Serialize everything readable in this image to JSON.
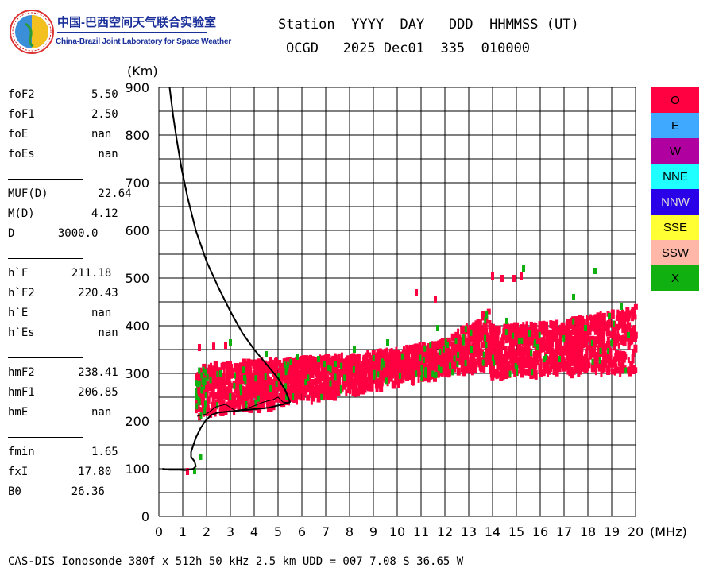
{
  "header": {
    "org_cn": "中国-巴西空间天气联合实验室",
    "org_en": "China-Brazil Joint Laboratory for Space Weather",
    "line1": "Station  YYYY  DAY   DDD  HHMMSS (UT)",
    "line2": "OCGD   2025 Dec01  335  010000"
  },
  "params": [
    {
      "name": "foF2",
      "value": "5.50"
    },
    {
      "name": "foF1",
      "value": "2.50"
    },
    {
      "name": "foE",
      "value": "nan"
    },
    {
      "name": "foEs",
      "value": "nan"
    },
    {
      "name": "MUF(D)",
      "value": "22.64"
    },
    {
      "name": "M(D)",
      "value": "4.12"
    },
    {
      "name": "D",
      "value": "3000.0"
    },
    {
      "name": "h`F",
      "value": "211.18"
    },
    {
      "name": "h`F2",
      "value": "220.43"
    },
    {
      "name": "h`E",
      "value": "nan"
    },
    {
      "name": "h`Es",
      "value": "nan"
    },
    {
      "name": "hmF2",
      "value": "238.41"
    },
    {
      "name": "hmF1",
      "value": "206.85"
    },
    {
      "name": "hmE",
      "value": "nan"
    },
    {
      "name": "fmin",
      "value": "1.65"
    },
    {
      "name": "fxI",
      "value": "17.80"
    },
    {
      "name": "B0",
      "value": "26.36"
    }
  ],
  "legend": [
    {
      "label": "O",
      "color": "#ff0040"
    },
    {
      "label": "E",
      "color": "#3fa9ff"
    },
    {
      "label": "W",
      "color": "#b000a0"
    },
    {
      "label": "NNE",
      "color": "#1fffff"
    },
    {
      "label": "NNW",
      "color": "#2a00e8"
    },
    {
      "label": "SSE",
      "color": "#ffff33"
    },
    {
      "label": "SSW",
      "color": "#ffb8a8"
    },
    {
      "label": "X",
      "color": "#11b011"
    }
  ],
  "footer": "CAS-DIS Ionosonde 380f x 512h 50 kHz 2.5 km UDD = 007 7.08 S 36.65 W",
  "chart_data": {
    "type": "scatter",
    "xlabel": "(MHz)",
    "ylabel": "(Km)",
    "xlim": [
      0,
      20
    ],
    "ylim": [
      0,
      900
    ],
    "xticks": [
      "0",
      "1",
      "2",
      "3",
      "4",
      "5",
      "6",
      "7",
      "8",
      "9",
      "10",
      "11",
      "12",
      "13",
      "14",
      "15",
      "16",
      "17",
      "18",
      "19",
      "20"
    ],
    "yticks": [
      "0",
      "100",
      "200",
      "300",
      "400",
      "500",
      "600",
      "700",
      "800",
      "900"
    ],
    "grid": true,
    "series": [
      {
        "name": "O",
        "color": "#ff0040",
        "bands": [
          {
            "x": [
              1.55,
              2.0
            ],
            "ylow": [
              205,
              215
            ],
            "yhigh": [
              300,
              320
            ]
          },
          {
            "x": [
              2.0,
              5.5
            ],
            "ylow": [
              215,
              235
            ],
            "yhigh": [
              320,
              330
            ]
          },
          {
            "x": [
              5.5,
              8.5
            ],
            "ylow": [
              240,
              260
            ],
            "yhigh": [
              330,
              340
            ]
          },
          {
            "x": [
              8.5,
              10.5
            ],
            "ylow": [
              265,
              285
            ],
            "yhigh": [
              340,
              355
            ]
          },
          {
            "x": [
              10.5,
              12.2
            ],
            "ylow": [
              285,
              300
            ],
            "yhigh": [
              355,
              370
            ]
          },
          {
            "x": [
              12.2,
              13.9
            ],
            "ylow": [
              300,
              310
            ],
            "yhigh": [
              375,
              435
            ]
          },
          {
            "x": [
              13.9,
              16.5
            ],
            "ylow": [
              295,
              300
            ],
            "yhigh": [
              400,
              405
            ]
          },
          {
            "x": [
              16.5,
              20.0
            ],
            "ylow": [
              300,
              305
            ],
            "yhigh": [
              405,
              440
            ]
          }
        ],
        "points": [
          [
            1.2,
            95
          ],
          [
            1.7,
            355
          ],
          [
            2.3,
            358
          ],
          [
            2.8,
            360
          ],
          [
            10.8,
            470
          ],
          [
            11.6,
            455
          ],
          [
            14.0,
            505
          ],
          [
            14.4,
            500
          ],
          [
            14.9,
            500
          ],
          [
            15.2,
            505
          ]
        ]
      },
      {
        "name": "X",
        "color": "#11b011",
        "points": [
          [
            1.5,
            95
          ],
          [
            1.75,
            125
          ],
          [
            3.0,
            365
          ],
          [
            4.5,
            340
          ],
          [
            5.8,
            335
          ],
          [
            8.2,
            350
          ],
          [
            9.6,
            365
          ],
          [
            11.2,
            300
          ],
          [
            11.7,
            395
          ],
          [
            12.1,
            360
          ],
          [
            13.1,
            350
          ],
          [
            14.6,
            410
          ],
          [
            15.3,
            520
          ],
          [
            15.9,
            355
          ],
          [
            16.8,
            330
          ],
          [
            17.4,
            460
          ],
          [
            17.9,
            395
          ],
          [
            18.3,
            515
          ],
          [
            18.9,
            420
          ],
          [
            19.4,
            440
          ],
          [
            19.7,
            380
          ],
          [
            6.7,
            330
          ],
          [
            7.4,
            320
          ],
          [
            2.6,
            300
          ],
          [
            3.6,
            290
          ]
        ]
      }
    ],
    "profile": [
      [
        0.45,
        900
      ],
      [
        0.6,
        840
      ],
      [
        0.75,
        790
      ],
      [
        0.95,
        730
      ],
      [
        1.2,
        670
      ],
      [
        1.55,
        600
      ],
      [
        2.0,
        535
      ],
      [
        2.5,
        480
      ],
      [
        3.0,
        430
      ],
      [
        3.5,
        385
      ],
      [
        4.0,
        350
      ],
      [
        4.5,
        320
      ],
      [
        5.0,
        290
      ],
      [
        5.3,
        265
      ],
      [
        5.5,
        240
      ],
      [
        5.2,
        235
      ],
      [
        4.6,
        228
      ],
      [
        4.0,
        225
      ],
      [
        3.4,
        222
      ],
      [
        2.9,
        220
      ],
      [
        2.5,
        218
      ],
      [
        2.2,
        213
      ],
      [
        1.95,
        200
      ],
      [
        1.75,
        185
      ],
      [
        1.55,
        165
      ],
      [
        1.45,
        150
      ],
      [
        1.35,
        135
      ],
      [
        1.35,
        125
      ],
      [
        1.5,
        115
      ],
      [
        1.55,
        105
      ],
      [
        1.45,
        100
      ],
      [
        1.1,
        97
      ],
      [
        0.9,
        98
      ],
      [
        0.45,
        98
      ],
      [
        0.15,
        100
      ]
    ],
    "profile_inner": [
      [
        1.6,
        210
      ],
      [
        2.0,
        215
      ],
      [
        2.4,
        230
      ],
      [
        2.8,
        235
      ],
      [
        3.2,
        222
      ],
      [
        3.6,
        225
      ],
      [
        4.0,
        232
      ],
      [
        4.4,
        240
      ],
      [
        4.8,
        245
      ],
      [
        5.0,
        250
      ],
      [
        5.2,
        240
      ],
      [
        5.5,
        238
      ]
    ]
  }
}
